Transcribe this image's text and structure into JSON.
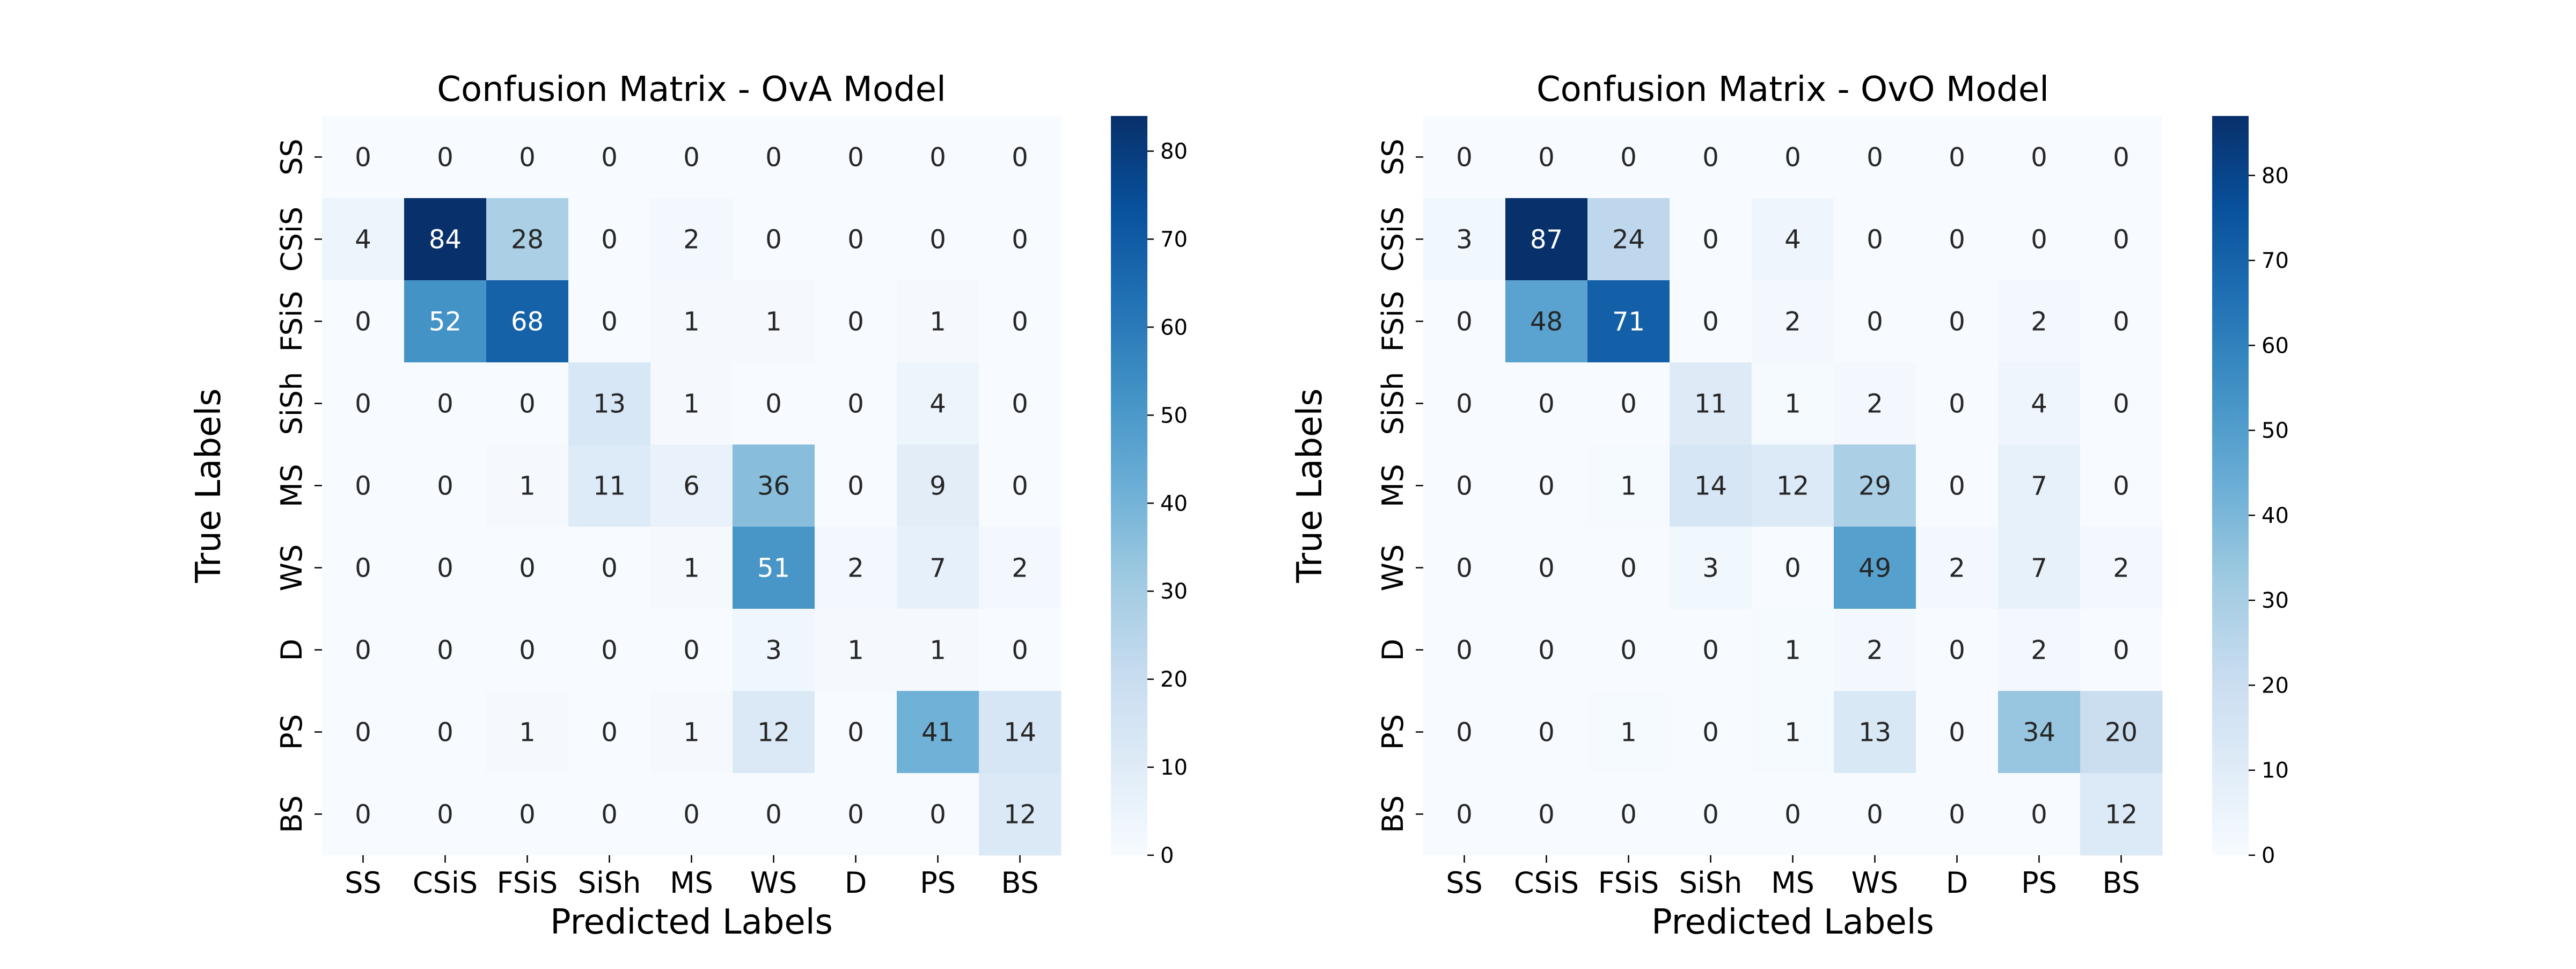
{
  "chart_data": [
    {
      "type": "heatmap",
      "title": "Confusion Matrix - OvA Model",
      "xlabel": "Predicted Labels",
      "ylabel": "True Labels",
      "x_categories": [
        "SS",
        "CSiS",
        "FSiS",
        "SiSh",
        "MS",
        "WS",
        "D",
        "PS",
        "BS"
      ],
      "y_categories": [
        "SS",
        "CSiS",
        "FSiS",
        "SiSh",
        "MS",
        "WS",
        "D",
        "PS",
        "BS"
      ],
      "values": [
        [
          0,
          0,
          0,
          0,
          0,
          0,
          0,
          0,
          0
        ],
        [
          4,
          84,
          28,
          0,
          2,
          0,
          0,
          0,
          0
        ],
        [
          0,
          52,
          68,
          0,
          1,
          1,
          0,
          1,
          0
        ],
        [
          0,
          0,
          0,
          13,
          1,
          0,
          0,
          4,
          0
        ],
        [
          0,
          0,
          1,
          11,
          6,
          36,
          0,
          9,
          0
        ],
        [
          0,
          0,
          0,
          0,
          1,
          51,
          2,
          7,
          2
        ],
        [
          0,
          0,
          0,
          0,
          0,
          3,
          1,
          1,
          0
        ],
        [
          0,
          0,
          1,
          0,
          1,
          12,
          0,
          41,
          14
        ],
        [
          0,
          0,
          0,
          0,
          0,
          0,
          0,
          0,
          12
        ]
      ],
      "colorbar": {
        "range": [
          0,
          84
        ],
        "ticks": [
          0,
          10,
          20,
          30,
          40,
          50,
          60,
          70,
          80
        ]
      },
      "colormap": "Blues"
    },
    {
      "type": "heatmap",
      "title": "Confusion Matrix - OvO Model",
      "xlabel": "Predicted Labels",
      "ylabel": "True Labels",
      "x_categories": [
        "SS",
        "CSiS",
        "FSiS",
        "SiSh",
        "MS",
        "WS",
        "D",
        "PS",
        "BS"
      ],
      "y_categories": [
        "SS",
        "CSiS",
        "FSiS",
        "SiSh",
        "MS",
        "WS",
        "D",
        "PS",
        "BS"
      ],
      "values": [
        [
          0,
          0,
          0,
          0,
          0,
          0,
          0,
          0,
          0
        ],
        [
          3,
          87,
          24,
          0,
          4,
          0,
          0,
          0,
          0
        ],
        [
          0,
          48,
          71,
          0,
          2,
          0,
          0,
          2,
          0
        ],
        [
          0,
          0,
          0,
          11,
          1,
          2,
          0,
          4,
          0
        ],
        [
          0,
          0,
          1,
          14,
          12,
          29,
          0,
          7,
          0
        ],
        [
          0,
          0,
          0,
          3,
          0,
          49,
          2,
          7,
          2
        ],
        [
          0,
          0,
          0,
          0,
          1,
          2,
          0,
          2,
          0
        ],
        [
          0,
          0,
          1,
          0,
          1,
          13,
          0,
          34,
          20
        ],
        [
          0,
          0,
          0,
          0,
          0,
          0,
          0,
          0,
          12
        ]
      ],
      "colorbar": {
        "range": [
          0,
          87
        ],
        "ticks": [
          0,
          10,
          20,
          30,
          40,
          50,
          60,
          70,
          80
        ]
      },
      "colormap": "Blues"
    }
  ]
}
